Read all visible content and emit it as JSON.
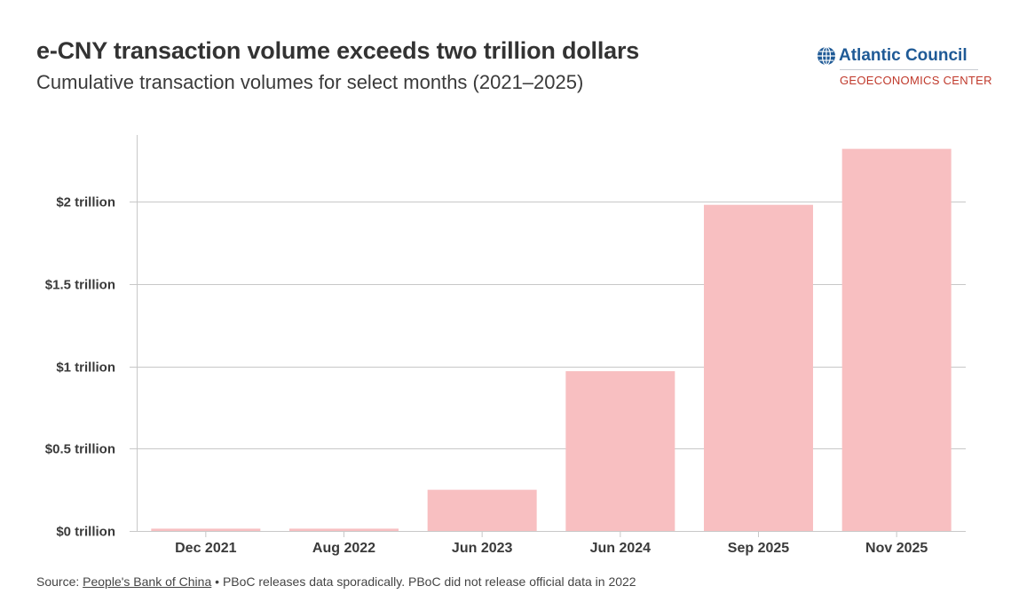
{
  "header": {
    "title": "e-CNY transaction volume exceeds two trillion dollars",
    "subtitle": "Cumulative transaction volumes for select months (2021–2025)"
  },
  "logo": {
    "icon": "globe-icon",
    "name": "Atlantic Council",
    "center": "GEOECONOMICS CENTER",
    "name_color": "#1f5a96",
    "center_color": "#c0392b"
  },
  "footer": {
    "source_prefix": "Source: ",
    "source_link": "People's Bank of China",
    "separator": " • ",
    "note": "PBoC releases data sporadically. PBoC did not release official data in 2022"
  },
  "chart_data": {
    "type": "bar",
    "title": "e-CNY transaction volume exceeds two trillion dollars",
    "subtitle": "Cumulative transaction volumes for select months (2021–2025)",
    "xlabel": "",
    "ylabel": "",
    "categories": [
      "Dec 2021",
      "Aug 2022",
      "Jun 2023",
      "Jun 2024",
      "Sep 2025",
      "Nov 2025"
    ],
    "values": [
      0.014,
      0.014,
      0.25,
      0.97,
      1.98,
      2.32
    ],
    "units": "trillion USD",
    "ylim": [
      0,
      2.4
    ],
    "yticks": [
      0,
      0.5,
      1,
      1.5,
      2
    ],
    "ytick_labels": [
      "$0 trillion",
      "$0.5 trillion",
      "$1 trillion",
      "$1.5 trillion",
      "$2 trillion"
    ],
    "grid": true,
    "legend": "none",
    "bar_color": "#f8bfc1",
    "grid_color": "#c8c8c8"
  }
}
